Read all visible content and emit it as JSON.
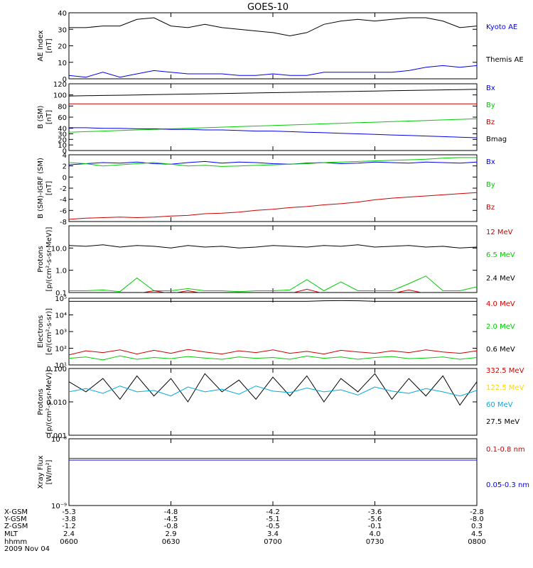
{
  "title": "GOES-10",
  "colors": {
    "black": "#000000",
    "blue": "#0000ee",
    "green": "#00cc00",
    "red": "#cc0000",
    "yellow": "#ffd700",
    "cyan": "#00aadd"
  },
  "panels": [
    {
      "id": "ae",
      "ylabel": [
        "AE Index",
        "[nT]"
      ],
      "scale": "linear",
      "ylim": [
        0,
        40
      ],
      "ticks": [
        {
          "v": 0,
          "t": "0"
        },
        {
          "v": 10,
          "t": "10"
        },
        {
          "v": 20,
          "t": "20"
        },
        {
          "v": 30,
          "t": "30"
        },
        {
          "v": 40,
          "t": "40"
        }
      ],
      "legend": [
        {
          "text": "Kyoto AE",
          "color": "blue"
        },
        {
          "text": "Themis AE",
          "color": "black"
        }
      ]
    },
    {
      "id": "bsm",
      "ylabel": [
        "B (SM)",
        "[nT]"
      ],
      "scale": "linear",
      "ylim": [
        0,
        120
      ],
      "ticks": [
        {
          "v": 0,
          "t": "0"
        },
        {
          "v": 10,
          "t": "10"
        },
        {
          "v": 20,
          "t": "20"
        },
        {
          "v": 30,
          "t": "30"
        },
        {
          "v": 40,
          "t": "40"
        },
        {
          "v": 60,
          "t": "60"
        },
        {
          "v": 80,
          "t": "80"
        },
        {
          "v": 100,
          "t": "100"
        },
        {
          "v": 120,
          "t": "120"
        }
      ],
      "legend": [
        {
          "text": "Bx",
          "color": "blue"
        },
        {
          "text": "By",
          "color": "green"
        },
        {
          "text": "Bz",
          "color": "red"
        },
        {
          "text": "Bmag",
          "color": "black"
        }
      ]
    },
    {
      "id": "bigrf",
      "ylabel": [
        "B (SM)-IGRF (SM)",
        "[nT]"
      ],
      "scale": "linear",
      "ylim": [
        -8,
        4
      ],
      "ticks": [
        {
          "v": -8,
          "t": "-8"
        },
        {
          "v": -6,
          "t": "-6"
        },
        {
          "v": -4,
          "t": "-4"
        },
        {
          "v": -2,
          "t": "-2"
        },
        {
          "v": 0,
          "t": "0"
        },
        {
          "v": 2,
          "t": "2"
        },
        {
          "v": 4,
          "t": "4"
        }
      ],
      "legend": [
        {
          "text": "Bx",
          "color": "blue"
        },
        {
          "text": "By",
          "color": "green"
        },
        {
          "text": "Bz",
          "color": "red"
        }
      ]
    },
    {
      "id": "protons",
      "ylabel": [
        "Protons",
        "[p/(cm²-s-sr-MeV)]"
      ],
      "scale": "log",
      "ylim": [
        0.1,
        100
      ],
      "ticks": [
        {
          "v": 0.1,
          "t": "0.1"
        },
        {
          "v": 1,
          "t": "1.0"
        },
        {
          "v": 10,
          "t": "10.0"
        }
      ],
      "legend": [
        {
          "text": "12 MeV",
          "color": "red"
        },
        {
          "text": "6.5 MeV",
          "color": "green"
        },
        {
          "text": "2.4 MeV",
          "color": "black"
        }
      ]
    },
    {
      "id": "electrons",
      "ylabel": [
        "Electrons",
        "[e/(cm²-s-sr)]"
      ],
      "scale": "log",
      "ylim": [
        10,
        100000
      ],
      "ticks": [
        {
          "v": 10,
          "t": "10¹"
        },
        {
          "v": 100,
          "t": "10²"
        },
        {
          "v": 1000,
          "t": "10³"
        },
        {
          "v": 10000,
          "t": "10⁴"
        },
        {
          "v": 100000,
          "t": "10⁵"
        }
      ],
      "legend": [
        {
          "text": "4.0 MeV",
          "color": "red"
        },
        {
          "text": "2.0 MeV",
          "color": "green"
        },
        {
          "text": "0.6 MeV",
          "color": "black"
        }
      ]
    },
    {
      "id": "hiprotons",
      "ylabel": [
        "Protons",
        "[p/(cm²-s-sr-MeV)]"
      ],
      "scale": "log",
      "ylim": [
        0.001,
        0.1
      ],
      "ticks": [
        {
          "v": 0.001,
          "t": "0.001"
        },
        {
          "v": 0.01,
          "t": "0.010"
        },
        {
          "v": 0.1,
          "t": "0.100"
        }
      ],
      "legend": [
        {
          "text": "332.5 MeV",
          "color": "red"
        },
        {
          "text": "122.5 MeV",
          "color": "yellow"
        },
        {
          "text": "60 MeV",
          "color": "cyan"
        },
        {
          "text": "27.5 MeV",
          "color": "black"
        }
      ]
    },
    {
      "id": "xray",
      "ylabel": [
        "Xray Flux",
        "[W/m²]"
      ],
      "scale": "log",
      "ylim": [
        1e-09,
        1e-08
      ],
      "ticks": [
        {
          "v": 1e-09,
          "t": "10⁻⁹"
        },
        {
          "v": 1e-08,
          "t": "10⁻⁸"
        }
      ],
      "legend": [
        {
          "text": "0.1-0.8 nm",
          "color": "red"
        },
        {
          "text": "0.05-0.3 nm",
          "color": "blue"
        }
      ]
    }
  ],
  "chart_data": {
    "type": "line",
    "x": [
      0,
      5,
      10,
      15,
      20,
      25,
      30,
      35,
      40,
      45,
      50,
      55,
      60,
      65,
      70,
      75,
      80,
      85,
      90,
      95,
      100,
      105,
      110,
      115,
      120
    ],
    "x_tick_values": [
      0,
      30,
      60,
      90,
      120
    ],
    "panels": {
      "ae": [
        {
          "name": "Themis AE",
          "color": "black",
          "values": [
            31,
            31,
            32,
            32,
            36,
            37,
            32,
            31,
            33,
            31,
            30,
            29,
            28,
            26,
            28,
            33,
            35,
            36,
            35,
            36,
            37,
            37,
            35,
            31,
            32
          ]
        },
        {
          "name": "Kyoto AE",
          "color": "blue",
          "values": [
            2,
            1,
            4,
            1,
            3,
            5,
            4,
            3,
            3,
            3,
            2,
            2,
            3,
            2,
            2,
            4,
            4,
            4,
            4,
            4,
            5,
            7,
            8,
            7,
            8
          ]
        }
      ],
      "bsm": [
        {
          "name": "Bmag",
          "color": "black",
          "values": [
            98,
            98.5,
            99,
            99.5,
            100,
            100.5,
            101,
            101.5,
            102,
            102.5,
            103,
            103.5,
            104,
            104.5,
            105,
            105.5,
            106,
            106.5,
            107,
            107.5,
            108,
            108.5,
            109,
            109.5,
            110
          ]
        },
        {
          "name": "Bz",
          "color": "red",
          "values": [
            84,
            84,
            84,
            84,
            84,
            84,
            84,
            84,
            84,
            84,
            84,
            84,
            84,
            84,
            84,
            84,
            84,
            84,
            84,
            84,
            84,
            84,
            84,
            84,
            84
          ]
        },
        {
          "name": "By",
          "color": "green",
          "values": [
            33,
            34,
            35,
            36,
            37,
            38,
            39,
            40,
            41,
            42,
            43,
            44,
            45,
            46,
            47,
            48,
            49,
            50,
            51,
            52,
            53,
            54,
            55,
            56,
            57
          ]
        },
        {
          "name": "Bx",
          "color": "blue",
          "values": [
            41,
            41,
            40,
            40,
            39,
            39,
            38,
            38,
            37,
            37,
            36,
            35,
            35,
            34,
            33,
            32,
            31,
            30,
            29,
            28,
            27,
            26,
            25,
            24,
            23
          ]
        }
      ],
      "bigrf": [
        {
          "name": "Bx",
          "color": "blue",
          "values": [
            2.2,
            2.4,
            2.6,
            2.5,
            2.7,
            2.4,
            2.3,
            2.6,
            2.8,
            2.5,
            2.7,
            2.6,
            2.4,
            2.3,
            2.5,
            2.6,
            2.4,
            2.5,
            2.7,
            2.6,
            2.5,
            2.7,
            2.6,
            2.5,
            2.7
          ]
        },
        {
          "name": "By",
          "color": "green",
          "values": [
            2.6,
            2.4,
            2.0,
            2.2,
            2.4,
            2.6,
            2.3,
            2.0,
            2.1,
            1.9,
            2.0,
            2.1,
            2.2,
            2.3,
            2.4,
            2.6,
            2.7,
            2.8,
            2.9,
            3.0,
            3.1,
            3.2,
            3.4,
            3.5,
            3.5
          ]
        },
        {
          "name": "Bz",
          "color": "red",
          "values": [
            -7.6,
            -7.4,
            -7.3,
            -7.2,
            -7.3,
            -7.2,
            -7.0,
            -6.9,
            -6.6,
            -6.5,
            -6.3,
            -6.0,
            -5.8,
            -5.5,
            -5.3,
            -5.0,
            -4.8,
            -4.5,
            -4.1,
            -3.8,
            -3.6,
            -3.4,
            -3.2,
            -3.0,
            -2.8
          ]
        }
      ],
      "protons": [
        {
          "name": "2.4 MeV",
          "color": "black",
          "values": [
            13,
            12,
            14,
            11,
            13,
            12,
            10,
            13,
            11,
            12,
            10,
            11,
            13,
            12,
            11,
            13,
            12,
            14,
            11,
            12,
            13,
            11,
            12,
            10,
            11
          ]
        },
        {
          "name": "6.5 MeV",
          "color": "green",
          "values": [
            0.12,
            0.12,
            0.13,
            0.11,
            0.45,
            0.12,
            0.12,
            0.15,
            0.12,
            0.12,
            0.11,
            0.12,
            0.12,
            0.13,
            0.38,
            0.12,
            0.3,
            0.12,
            0.12,
            0.12,
            0.25,
            0.55,
            0.12,
            0.12,
            0.18
          ]
        },
        {
          "name": "12 MeV",
          "color": "red",
          "values": [
            0.09,
            0.09,
            0.09,
            0.09,
            0.09,
            0.12,
            0.09,
            0.12,
            0.09,
            0.09,
            0.09,
            0.09,
            0.09,
            0.09,
            0.14,
            0.09,
            0.09,
            0.09,
            0.09,
            0.09,
            0.13,
            0.09,
            0.09,
            0.09,
            0.09
          ]
        }
      ],
      "electrons": [
        {
          "name": "0.6 MeV",
          "color": "black",
          "values": [
            65000,
            65000,
            65000,
            65000,
            65000,
            65000,
            65000,
            65000,
            65000,
            65000,
            65000,
            65000,
            65000,
            65000,
            65000,
            70000,
            72000,
            70000,
            65000,
            65000,
            65000,
            65000,
            65000,
            65000,
            65000
          ]
        },
        {
          "name": "4.0 MeV",
          "color": "red",
          "values": [
            40,
            70,
            55,
            80,
            45,
            75,
            50,
            85,
            60,
            45,
            70,
            55,
            80,
            50,
            65,
            45,
            75,
            60,
            50,
            70,
            55,
            80,
            60,
            50,
            70
          ]
        },
        {
          "name": "2.0 MeV",
          "color": "green",
          "values": [
            25,
            30,
            20,
            35,
            22,
            28,
            24,
            32,
            26,
            22,
            30,
            25,
            28,
            22,
            34,
            25,
            30,
            22,
            28,
            32,
            24,
            26,
            30,
            22,
            28
          ]
        }
      ],
      "hiprotons": [
        {
          "name": "27.5 MeV",
          "color": "black",
          "values": [
            0.04,
            0.02,
            0.05,
            0.012,
            0.06,
            0.015,
            0.05,
            0.01,
            0.07,
            0.02,
            0.045,
            0.012,
            0.055,
            0.015,
            0.06,
            0.01,
            0.05,
            0.02,
            0.07,
            0.012,
            0.05,
            0.015,
            0.06,
            0.008,
            0.04
          ]
        },
        {
          "name": "60 MeV",
          "color": "cyan",
          "values": [
            0.02,
            0.025,
            0.018,
            0.03,
            0.02,
            0.022,
            0.015,
            0.028,
            0.02,
            0.024,
            0.017,
            0.03,
            0.021,
            0.019,
            0.026,
            0.02,
            0.023,
            0.016,
            0.028,
            0.021,
            0.018,
            0.025,
            0.02,
            0.015,
            0.022
          ]
        }
      ],
      "xray": [
        {
          "name": "0.1-0.8 nm",
          "color": "red",
          "values": [
            5.1e-09,
            5.1e-09,
            5.1e-09,
            5.1e-09,
            5.1e-09,
            5.1e-09,
            5.1e-09,
            5.1e-09,
            5.1e-09,
            5.1e-09,
            5.1e-09,
            5.1e-09,
            5.1e-09,
            5.1e-09,
            5.1e-09,
            5.1e-09,
            5.1e-09,
            5.1e-09,
            5.1e-09,
            5.1e-09,
            5.1e-09,
            5.1e-09,
            5.1e-09,
            5.1e-09,
            5.1e-09
          ]
        },
        {
          "name": "0.05-0.3 nm",
          "color": "blue",
          "values": [
            4.8e-09,
            4.8e-09,
            4.8e-09,
            4.8e-09,
            4.8e-09,
            4.8e-09,
            4.8e-09,
            4.8e-09,
            4.8e-09,
            4.8e-09,
            4.8e-09,
            4.8e-09,
            4.8e-09,
            4.8e-09,
            4.8e-09,
            4.8e-09,
            4.8e-09,
            4.8e-09,
            4.8e-09,
            4.8e-09,
            4.8e-09,
            4.8e-09,
            4.8e-09,
            4.8e-09,
            4.8e-09
          ]
        }
      ]
    }
  },
  "ephemeris": {
    "labels": [
      "X-GSM",
      "Y-GSM",
      "Z-GSM",
      "MLT",
      "hhmm",
      "2009 Nov 04"
    ],
    "columns": [
      [
        "-5.3",
        "-3.8",
        "-1.2",
        "2.4",
        "0600"
      ],
      [
        "-4.8",
        "-4.5",
        "-0.8",
        "2.9",
        "0630"
      ],
      [
        "-4.2",
        "-5.1",
        "-0.5",
        "3.4",
        "0700"
      ],
      [
        "-3.6",
        "-5.6",
        "-0.1",
        "4.0",
        "0730"
      ],
      [
        "-2.8",
        "-8.0",
        "0.3",
        "4.5",
        "0800"
      ]
    ]
  }
}
